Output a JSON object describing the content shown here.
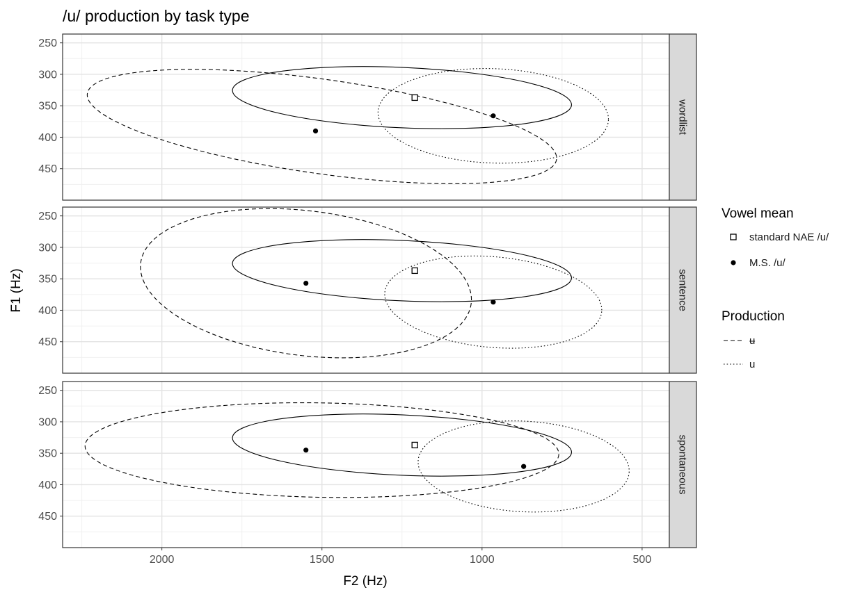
{
  "chart_data": {
    "type": "scatter",
    "title": "/u/ production by task type",
    "xlabel": "F2 (Hz)",
    "ylabel": "F1 (Hz)",
    "x_reversed": true,
    "y_reversed": true,
    "xlim": [
      2310,
      415
    ],
    "ylim": [
      500,
      236
    ],
    "x_ticks": [
      2000,
      1500,
      1000,
      500
    ],
    "y_ticks": [
      250,
      300,
      350,
      400,
      450
    ],
    "grid": true,
    "legend_position": "right",
    "legends": [
      {
        "title": "Vowel mean",
        "entries": [
          {
            "label": "standard NAE /u/",
            "shape": "open-square"
          },
          {
            "label": "M.S. /u/",
            "shape": "filled-circle"
          }
        ]
      },
      {
        "title": "Production",
        "entries": [
          {
            "label": "ʉ",
            "linetype": "dashed"
          },
          {
            "label": "u",
            "linetype": "dotted"
          }
        ]
      }
    ],
    "facets": [
      {
        "label": "wordlist",
        "standard_mean": {
          "x": 1210,
          "y": 337
        },
        "ms_mean": [
          {
            "x": 1520,
            "y": 390
          },
          {
            "x": 965,
            "y": 366
          }
        ],
        "ellipses": [
          {
            "linetype": "solid",
            "cx": 1250,
            "cy": 337,
            "rx": 530,
            "ry": 48,
            "angle": 2.5
          },
          {
            "linetype": "dashed",
            "cx": 1500,
            "cy": 383,
            "rx": 740,
            "ry": 75,
            "angle": 8
          },
          {
            "linetype": "dotted",
            "cx": 965,
            "cy": 366,
            "rx": 360,
            "ry": 75,
            "angle": 2
          }
        ]
      },
      {
        "label": "sentence",
        "standard_mean": {
          "x": 1210,
          "y": 337
        },
        "ms_mean": [
          {
            "x": 1550,
            "y": 357
          },
          {
            "x": 965,
            "y": 387
          }
        ],
        "ellipses": [
          {
            "linetype": "solid",
            "cx": 1250,
            "cy": 337,
            "rx": 530,
            "ry": 48,
            "angle": 2.5
          },
          {
            "linetype": "dashed",
            "cx": 1550,
            "cy": 357,
            "rx": 520,
            "ry": 115,
            "angle": 7
          },
          {
            "linetype": "dotted",
            "cx": 965,
            "cy": 387,
            "rx": 340,
            "ry": 72,
            "angle": 5
          }
        ]
      },
      {
        "label": "spontaneous",
        "standard_mean": {
          "x": 1210,
          "y": 337
        },
        "ms_mean": [
          {
            "x": 1550,
            "y": 345
          },
          {
            "x": 870,
            "y": 371
          }
        ],
        "ellipses": [
          {
            "linetype": "solid",
            "cx": 1250,
            "cy": 337,
            "rx": 530,
            "ry": 48,
            "angle": 2.5
          },
          {
            "linetype": "dashed",
            "cx": 1500,
            "cy": 345,
            "rx": 740,
            "ry": 75,
            "angle": 1
          },
          {
            "linetype": "dotted",
            "cx": 870,
            "cy": 371,
            "rx": 330,
            "ry": 72,
            "angle": 3
          }
        ]
      }
    ]
  }
}
